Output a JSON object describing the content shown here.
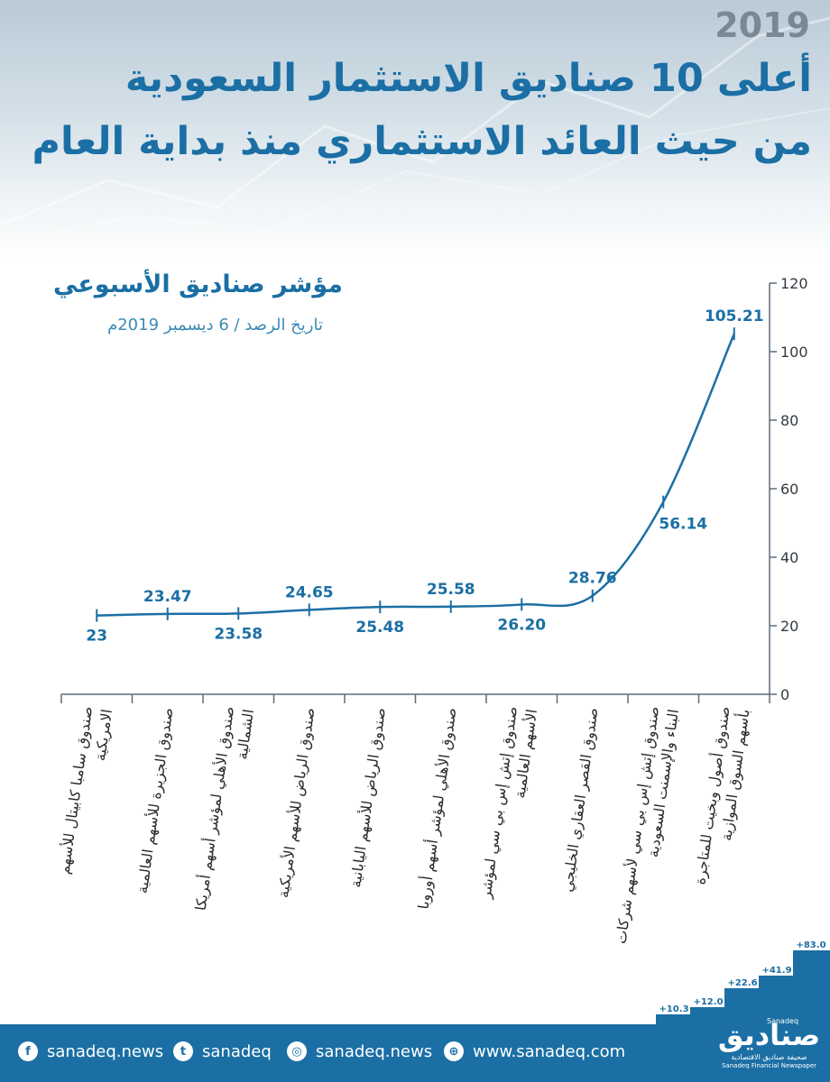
{
  "header": {
    "year": "2019",
    "title_line1": "أعلى 10 صناديق الاستثمار السعودية",
    "title_line2": "من حيث العائد الاستثماري منذ بداية العام"
  },
  "chart_data": {
    "type": "line",
    "title": "مؤشر صناديق الأسبوعي",
    "subtitle": "تاريخ الرصد / 6 ديسمبر 2019م",
    "categories": [
      "صندوق سامبا كابيتال للأسهم الامريكية",
      "صندوق الجزيرة للأسهم العالمية",
      "صندوق الأهلي لمؤشر أسهم أمريكا الشمالية",
      "صندوق الرياض للأسهم الأمريكية",
      "صندوق الرياض للأسهم اليابانية",
      "صندوق الأهلي لمؤشر أسهم أوروبا",
      "صندوق إتش إس بي سي لمؤشر الأسهم العالمية",
      "صندوق القصر العقاري الخليجي",
      "صندوق إتش إس بي سي لأسهم شركات البناء والإسمنت السعودية",
      "صندوق أصول وبخيت للمتاجرة بأسهم السوق الموازية"
    ],
    "values": [
      23,
      23.47,
      23.58,
      24.65,
      25.48,
      25.58,
      26.2,
      28.76,
      56.14,
      105.21
    ],
    "data_labels": [
      "23",
      "23.47",
      "23.58",
      "24.65",
      "25.48",
      "25.58",
      "26.20",
      "28.76",
      "56.14",
      "105.21"
    ],
    "y_ticks": [
      "0",
      "20",
      "40",
      "60",
      "80",
      "100",
      "120"
    ],
    "ylim": [
      0,
      120
    ],
    "y_axis_side": "right",
    "grid": false,
    "line_color": "#1b6fa4"
  },
  "decor_steps": {
    "labels": [
      "+10.3",
      "+12.0",
      "+22.6",
      "+41.9",
      "+83.0"
    ],
    "color": "#1b6fa4"
  },
  "footer": {
    "facebook": "sanadeq.news",
    "twitter": "sanadeq",
    "instagram": "sanadeq.news",
    "website": "www.sanadeq.com",
    "logo_name": "صناديق",
    "logo_small": "Sanadeq",
    "logo_tagline_ar": "صحيفة صناديق الاقتصادية",
    "logo_tagline_en": "Sanadeq Financial Newspaper"
  }
}
